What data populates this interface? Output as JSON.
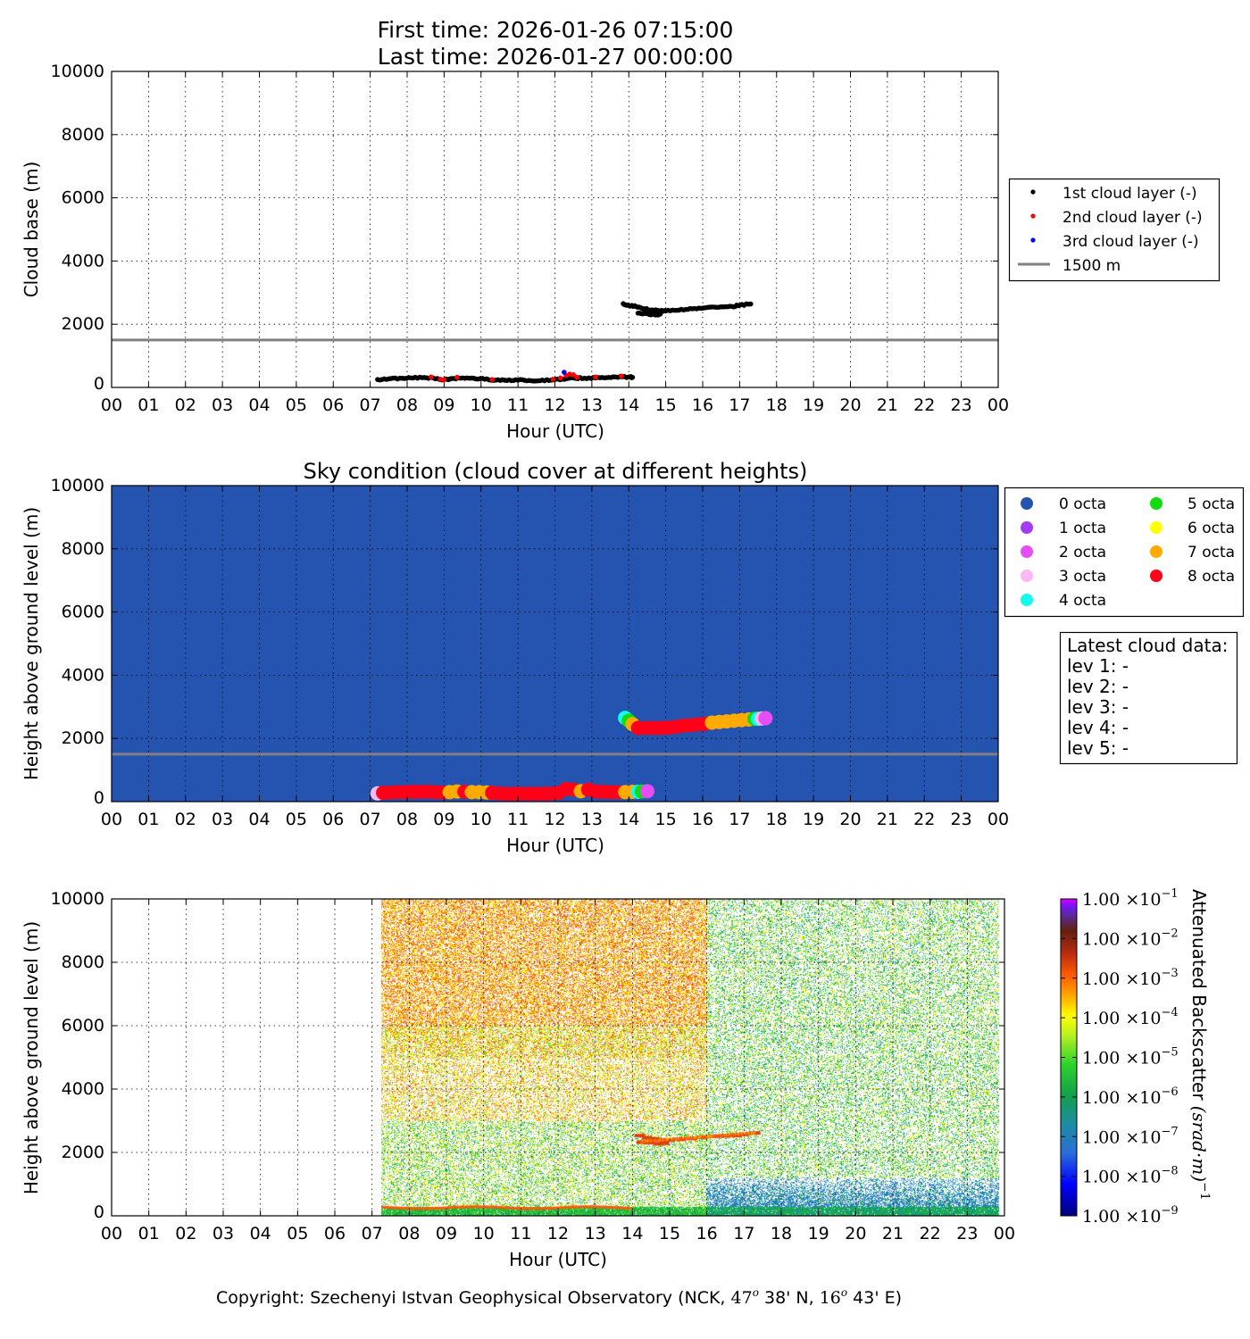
{
  "header": {
    "first_time": "First time: 2026-01-26 07:15:00",
    "last_time": "Last time: 2026-01-27 00:00:00"
  },
  "hour_ticks": [
    "00",
    "01",
    "02",
    "03",
    "04",
    "05",
    "06",
    "07",
    "08",
    "09",
    "10",
    "11",
    "12",
    "13",
    "14",
    "15",
    "16",
    "17",
    "18",
    "19",
    "20",
    "21",
    "22",
    "23",
    "00"
  ],
  "height_ticks": [
    "0",
    "2000",
    "4000",
    "6000",
    "8000",
    "10000"
  ],
  "chart_data": [
    {
      "type": "scatter",
      "title": "",
      "xlabel": "Hour (UTC)",
      "ylabel": "Cloud base (m)",
      "xlim": [
        0,
        24
      ],
      "ylim": [
        0,
        10000
      ],
      "grid": true,
      "legend_placement": "outside-right",
      "reference_line": {
        "label": "1500 m",
        "value": 1500,
        "color": "#808080"
      },
      "series": [
        {
          "name": "1st cloud layer (-)",
          "color": "#000000",
          "points": [
            [
              7.2,
              250
            ],
            [
              7.5,
              270
            ],
            [
              7.8,
              290
            ],
            [
              8.1,
              300
            ],
            [
              8.4,
              310
            ],
            [
              8.7,
              300
            ],
            [
              9.0,
              240
            ],
            [
              9.2,
              280
            ],
            [
              9.5,
              300
            ],
            [
              9.8,
              290
            ],
            [
              10.1,
              260
            ],
            [
              10.4,
              230
            ],
            [
              10.7,
              220
            ],
            [
              11.0,
              230
            ],
            [
              11.3,
              220
            ],
            [
              11.6,
              215
            ],
            [
              11.9,
              230
            ],
            [
              12.2,
              260
            ],
            [
              12.5,
              300
            ],
            [
              12.8,
              290
            ],
            [
              13.1,
              300
            ],
            [
              13.4,
              310
            ],
            [
              13.7,
              320
            ],
            [
              14.0,
              330
            ],
            [
              14.1,
              320
            ],
            [
              13.85,
              2650
            ],
            [
              14.0,
              2590
            ],
            [
              14.2,
              2560
            ],
            [
              14.4,
              2490
            ],
            [
              14.6,
              2450
            ],
            [
              14.8,
              2430
            ],
            [
              15.0,
              2420
            ],
            [
              15.3,
              2440
            ],
            [
              15.6,
              2470
            ],
            [
              15.9,
              2510
            ],
            [
              16.2,
              2540
            ],
            [
              16.5,
              2550
            ],
            [
              16.8,
              2560
            ],
            [
              17.0,
              2600
            ],
            [
              17.3,
              2640
            ],
            [
              14.25,
              2350
            ],
            [
              14.45,
              2340
            ],
            [
              14.7,
              2300
            ],
            [
              14.85,
              2320
            ]
          ]
        },
        {
          "name": "2nd cloud layer (-)",
          "color": "#ff0000",
          "points": [
            [
              8.65,
              330
            ],
            [
              8.9,
              260
            ],
            [
              9.0,
              240
            ],
            [
              9.35,
              320
            ],
            [
              10.3,
              250
            ],
            [
              11.95,
              260
            ],
            [
              12.15,
              300
            ],
            [
              12.3,
              380
            ],
            [
              12.4,
              420
            ],
            [
              12.5,
              400
            ],
            [
              12.6,
              320
            ],
            [
              13.1,
              330
            ],
            [
              13.8,
              360
            ]
          ]
        },
        {
          "name": "3rd cloud layer (-)",
          "color": "#0000ff",
          "points": [
            [
              12.25,
              480
            ]
          ]
        }
      ]
    },
    {
      "type": "scatter",
      "title": "Sky condition (cloud cover at different heights)",
      "xlabel": "Hour (UTC)",
      "ylabel": "Height above ground level (m)",
      "xlim": [
        0,
        24
      ],
      "ylim": [
        0,
        10000
      ],
      "grid": true,
      "background_color": "#2453b0",
      "reference_line": {
        "value": 1500,
        "color": "#808080"
      },
      "legend": [
        {
          "label": "0 octa",
          "color": "#2453b0"
        },
        {
          "label": "1 octa",
          "color": "#a23cf5"
        },
        {
          "label": "2 octa",
          "color": "#e54ef5"
        },
        {
          "label": "3 octa",
          "color": "#fbb8f5"
        },
        {
          "label": "4 octa",
          "color": "#12fbef"
        },
        {
          "label": "5 octa",
          "color": "#10dc10"
        },
        {
          "label": "6 octa",
          "color": "#ffff00"
        },
        {
          "label": "7 octa",
          "color": "#ffaa00"
        },
        {
          "label": "8 octa",
          "color": "#ff0018"
        }
      ],
      "points": [
        [
          7.2,
          260,
          3
        ],
        [
          7.35,
          280,
          8
        ],
        [
          7.55,
          290,
          8
        ],
        [
          7.75,
          300,
          8
        ],
        [
          7.95,
          300,
          8
        ],
        [
          8.15,
          310,
          8
        ],
        [
          8.35,
          310,
          8
        ],
        [
          8.55,
          310,
          8
        ],
        [
          8.75,
          300,
          8
        ],
        [
          8.95,
          290,
          8
        ],
        [
          9.15,
          300,
          7
        ],
        [
          9.35,
          320,
          7
        ],
        [
          9.55,
          310,
          8
        ],
        [
          9.75,
          300,
          7
        ],
        [
          9.95,
          300,
          7
        ],
        [
          10.15,
          290,
          7
        ],
        [
          10.3,
          280,
          8
        ],
        [
          10.5,
          260,
          8
        ],
        [
          10.7,
          250,
          8
        ],
        [
          10.9,
          250,
          8
        ],
        [
          11.1,
          250,
          8
        ],
        [
          11.3,
          250,
          8
        ],
        [
          11.5,
          250,
          8
        ],
        [
          11.7,
          250,
          8
        ],
        [
          11.9,
          260,
          8
        ],
        [
          12.1,
          280,
          8
        ],
        [
          12.3,
          400,
          8
        ],
        [
          12.5,
          380,
          8
        ],
        [
          12.7,
          330,
          7
        ],
        [
          12.9,
          380,
          8
        ],
        [
          13.1,
          320,
          8
        ],
        [
          13.3,
          310,
          8
        ],
        [
          13.5,
          300,
          8
        ],
        [
          13.7,
          300,
          8
        ],
        [
          13.9,
          300,
          7
        ],
        [
          14.1,
          310,
          7
        ],
        [
          14.25,
          310,
          4
        ],
        [
          14.35,
          320,
          5
        ],
        [
          14.5,
          330,
          2
        ],
        [
          13.9,
          2650,
          4
        ],
        [
          14.0,
          2560,
          5
        ],
        [
          14.1,
          2450,
          7
        ],
        [
          14.25,
          2330,
          8
        ],
        [
          14.45,
          2330,
          8
        ],
        [
          14.65,
          2330,
          8
        ],
        [
          14.85,
          2330,
          8
        ],
        [
          15.05,
          2340,
          8
        ],
        [
          15.25,
          2360,
          8
        ],
        [
          15.45,
          2400,
          8
        ],
        [
          15.65,
          2420,
          8
        ],
        [
          15.85,
          2440,
          8
        ],
        [
          16.05,
          2460,
          8
        ],
        [
          16.25,
          2500,
          7
        ],
        [
          16.45,
          2520,
          7
        ],
        [
          16.65,
          2540,
          7
        ],
        [
          16.85,
          2560,
          7
        ],
        [
          17.05,
          2580,
          7
        ],
        [
          17.25,
          2600,
          7
        ],
        [
          17.4,
          2620,
          5
        ],
        [
          17.5,
          2620,
          4
        ],
        [
          17.6,
          2630,
          3
        ],
        [
          17.7,
          2640,
          2
        ]
      ]
    },
    {
      "type": "heatmap",
      "xlabel": "Hour (UTC)",
      "ylabel": "Height above ground level (m)",
      "xlim": [
        0,
        24
      ],
      "ylim": [
        0,
        10000
      ],
      "data_start_hour": 7.25,
      "data_end_hour": 23.85,
      "colorbar": {
        "label": "Attenuated Backscatter",
        "units": "(srad·m)",
        "units_exponent": "−1",
        "scale": "log",
        "range": [
          1e-09,
          0.1
        ],
        "tick_mantissa": "1.00",
        "tick_exponents": [
          "−9",
          "−8",
          "−7",
          "−6",
          "−5",
          "−4",
          "−3",
          "−2",
          "−1"
        ]
      }
    }
  ],
  "latest_cloud_data": {
    "title": "Latest cloud data:",
    "lines": [
      "lev 1: -",
      "lev 2: -",
      "lev 3: -",
      "lev 4: -",
      "lev 5: -"
    ]
  },
  "footer": {
    "prefix": "Copyright: Szechenyi Istvan Geophysical Observatory (NCK, ",
    "lat_deg": "47",
    "lat_rest": " 38' N, ",
    "lon_deg": "16",
    "lon_rest": " 43' E)",
    "degree_symbol": "o"
  }
}
